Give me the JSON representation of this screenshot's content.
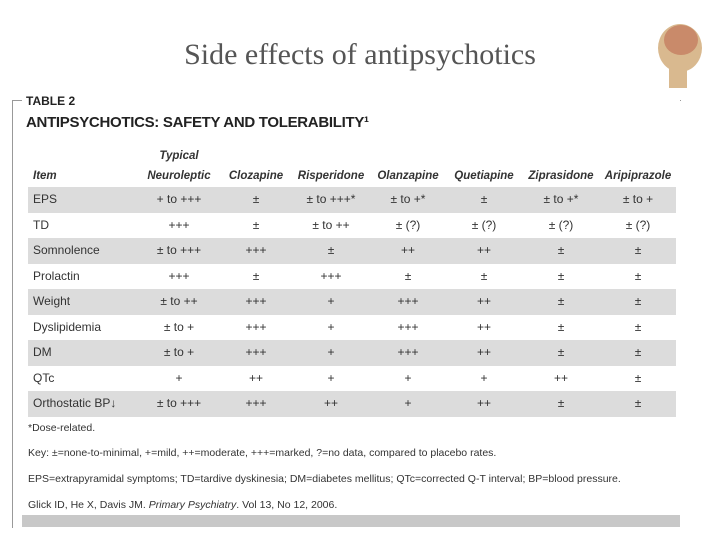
{
  "slide": {
    "title": "Side effects of antipsychotics"
  },
  "table": {
    "label": "TABLE 2",
    "title": "ANTIPSYCHOTICS: SAFETY AND TOLERABILITY¹",
    "header": [
      "Item",
      "Typical Neuroleptic",
      "Clozapine",
      "Risperidone",
      "Olanzapine",
      "Quetiapine",
      "Ziprasidone",
      "Aripiprazole"
    ],
    "rows": [
      [
        "EPS",
        "+ to +++",
        "±",
        "± to +++*",
        "± to +*",
        "±",
        "± to +*",
        "± to +"
      ],
      [
        "TD",
        "+++",
        "±",
        "± to ++",
        "± (?)",
        "± (?)",
        "± (?)",
        "± (?)"
      ],
      [
        "Somnolence",
        "± to +++",
        "+++",
        "±",
        "++",
        "++",
        "±",
        "±"
      ],
      [
        "Prolactin",
        "+++",
        "±",
        "+++",
        "±",
        "±",
        "±",
        "±"
      ],
      [
        "Weight",
        "± to ++",
        "+++",
        "+",
        "+++",
        "++",
        "±",
        "±"
      ],
      [
        "Dyslipidemia",
        "± to +",
        "+++",
        "+",
        "+++",
        "++",
        "±",
        "±"
      ],
      [
        "DM",
        "± to +",
        "+++",
        "+",
        "+++",
        "++",
        "±",
        "±"
      ],
      [
        "QTc",
        "+",
        "++",
        "+",
        "+",
        "+",
        "++",
        "±"
      ],
      [
        "Orthostatic BP↓",
        "± to +++",
        "+++",
        "++",
        "+",
        "++",
        "±",
        "±"
      ]
    ],
    "footnotes": [
      "*Dose-related.",
      "Key: ±=none-to-minimal, +=mild, ++=moderate, +++=marked, ?=no data, compared to placebo rates.",
      "EPS=extrapyramidal symptoms; TD=tardive dyskinesia; DM=diabetes mellitus; QTc=corrected Q-T interval; BP=blood pressure."
    ],
    "citation": [
      "Glick ID, He X, Davis JM. ",
      "Primary Psychiatry",
      ". Vol 13, No 12, 2006."
    ]
  }
}
